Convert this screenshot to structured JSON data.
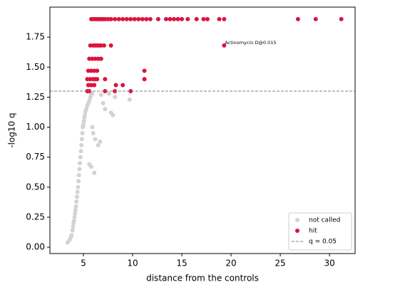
{
  "chart_data": {
    "type": "scatter",
    "xlabel": "distance from the controls",
    "ylabel": "-log10 q",
    "xlim": [
      1.6,
      32.6
    ],
    "ylim": [
      -0.053,
      2.0
    ],
    "xticks": [
      5,
      10,
      15,
      20,
      25,
      30
    ],
    "yticks": [
      {
        "value": 0,
        "label": "0.00"
      },
      {
        "value": 0.25,
        "label": "0.25"
      },
      {
        "value": 0.5,
        "label": "0.50"
      },
      {
        "value": 0.75,
        "label": "0.75"
      },
      {
        "value": 1,
        "label": "1.00"
      },
      {
        "value": 1.25,
        "label": "1.25"
      },
      {
        "value": 1.5,
        "label": "1.50"
      },
      {
        "value": 1.75,
        "label": "1.75"
      }
    ],
    "legend": "lower right",
    "threshold": {
      "name": "q = 0.05",
      "value": 1.3,
      "color": "#808080"
    },
    "series": [
      {
        "name": "not called",
        "color": "#d3d3d3",
        "x": [
          3.4,
          3.6,
          3.7,
          3.8,
          3.9,
          3.95,
          4.0,
          4.05,
          4.1,
          4.15,
          4.2,
          4.25,
          4.3,
          4.35,
          4.4,
          4.45,
          4.5,
          4.55,
          4.6,
          4.65,
          4.7,
          4.75,
          4.8,
          4.85,
          4.9,
          4.95,
          5.0,
          5.05,
          5.1,
          5.15,
          5.2,
          5.3,
          5.4,
          5.5,
          5.6,
          5.7,
          5.8,
          5.9,
          6.0,
          6.2,
          5.8,
          6.5,
          6.7,
          6.8,
          7.0,
          7.2,
          7.6,
          7.8,
          8.0,
          8.2,
          9.7,
          6.1,
          5.6,
          5.9
        ],
        "values": [
          0.04,
          0.06,
          0.08,
          0.1,
          0.14,
          0.17,
          0.2,
          0.22,
          0.25,
          0.28,
          0.31,
          0.34,
          0.38,
          0.42,
          0.46,
          0.5,
          0.55,
          0.6,
          0.65,
          0.7,
          0.75,
          0.8,
          0.85,
          0.9,
          0.95,
          1.0,
          1.02,
          1.05,
          1.08,
          1.1,
          1.13,
          1.15,
          1.18,
          1.2,
          1.22,
          1.25,
          1.27,
          1.0,
          0.95,
          0.9,
          0.67,
          0.85,
          0.88,
          1.27,
          1.2,
          1.15,
          1.28,
          1.12,
          1.1,
          1.25,
          1.23,
          0.62,
          0.69,
          1.28
        ]
      },
      {
        "name": "hit",
        "color": "#dc143c",
        "x": [
          5.8,
          6.0,
          6.2,
          6.4,
          6.6,
          6.8,
          7.0,
          7.2,
          7.5,
          7.8,
          8.2,
          8.6,
          9.0,
          9.4,
          9.8,
          10.2,
          10.6,
          11.0,
          11.4,
          11.8,
          12.6,
          13.4,
          13.8,
          14.2,
          14.6,
          15.0,
          15.6,
          16.5,
          17.2,
          17.6,
          18.8,
          19.3,
          26.8,
          28.6,
          31.2,
          5.7,
          6.0,
          6.2,
          6.4,
          6.6,
          6.8,
          7.1,
          7.8,
          19.3,
          5.6,
          5.9,
          6.2,
          6.5,
          6.8,
          5.5,
          5.8,
          6.1,
          6.4,
          11.2,
          5.4,
          5.7,
          6.0,
          6.2,
          6.4,
          7.2,
          11.2,
          5.5,
          5.8,
          6.1,
          8.3,
          9.0,
          5.4,
          5.6,
          7.2,
          8.2,
          9.8
        ],
        "values": [
          1.9,
          1.9,
          1.9,
          1.9,
          1.9,
          1.9,
          1.9,
          1.9,
          1.9,
          1.9,
          1.9,
          1.9,
          1.9,
          1.9,
          1.9,
          1.9,
          1.9,
          1.9,
          1.9,
          1.9,
          1.9,
          1.9,
          1.9,
          1.9,
          1.9,
          1.9,
          1.9,
          1.9,
          1.9,
          1.9,
          1.9,
          1.9,
          1.9,
          1.9,
          1.9,
          1.68,
          1.68,
          1.68,
          1.68,
          1.68,
          1.68,
          1.68,
          1.68,
          1.68,
          1.57,
          1.57,
          1.57,
          1.57,
          1.57,
          1.47,
          1.47,
          1.47,
          1.47,
          1.47,
          1.4,
          1.4,
          1.4,
          1.4,
          1.4,
          1.4,
          1.4,
          1.35,
          1.35,
          1.35,
          1.35,
          1.35,
          1.3,
          1.3,
          1.3,
          1.3,
          1.3
        ]
      }
    ],
    "annotations": [
      {
        "text": "Actinomycin D@0.015",
        "x": 19.3,
        "y": 1.68
      }
    ]
  }
}
